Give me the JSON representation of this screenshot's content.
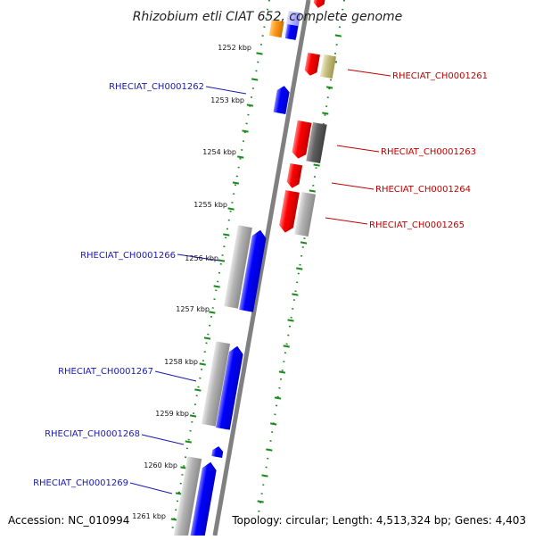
{
  "title": "Rhizobium etli CIAT 652, complete genome",
  "footer": {
    "accession": "Accession: NC_010994",
    "topology": "Topology: circular; Length: 4,513,324 bp; Genes: 4,403"
  },
  "ruler_labels": [
    "1252 kbp",
    "1253 kbp",
    "1254 kbp",
    "1255 kbp",
    "1256 kbp",
    "1257 kbp",
    "1258 kbp",
    "1259 kbp",
    "1260 kbp",
    "1261 kbp"
  ],
  "genes_left": [
    "RHECIAT_CH0001262",
    "RHECIAT_CH0001266",
    "RHECIAT_CH0001267",
    "RHECIAT_CH0001268",
    "RHECIAT_CH0001269"
  ],
  "genes_right": [
    "RHECIAT_CH0001261",
    "RHECIAT_CH0001263",
    "RHECIAT_CH0001264",
    "RHECIAT_CH0001265"
  ],
  "colors": {
    "forward_gene": "#0000ff",
    "reverse_gene": "#ff0000",
    "left_label": "#1a1ab0",
    "right_label": "#c00000",
    "ruler_tick": "#1a8a1a",
    "backbone": "#808080",
    "operon_gray": "#b4b4b4",
    "operon_dark": "#606060",
    "operon_khaki": "#c8c080",
    "orange_gene": "#ff9a1a"
  }
}
